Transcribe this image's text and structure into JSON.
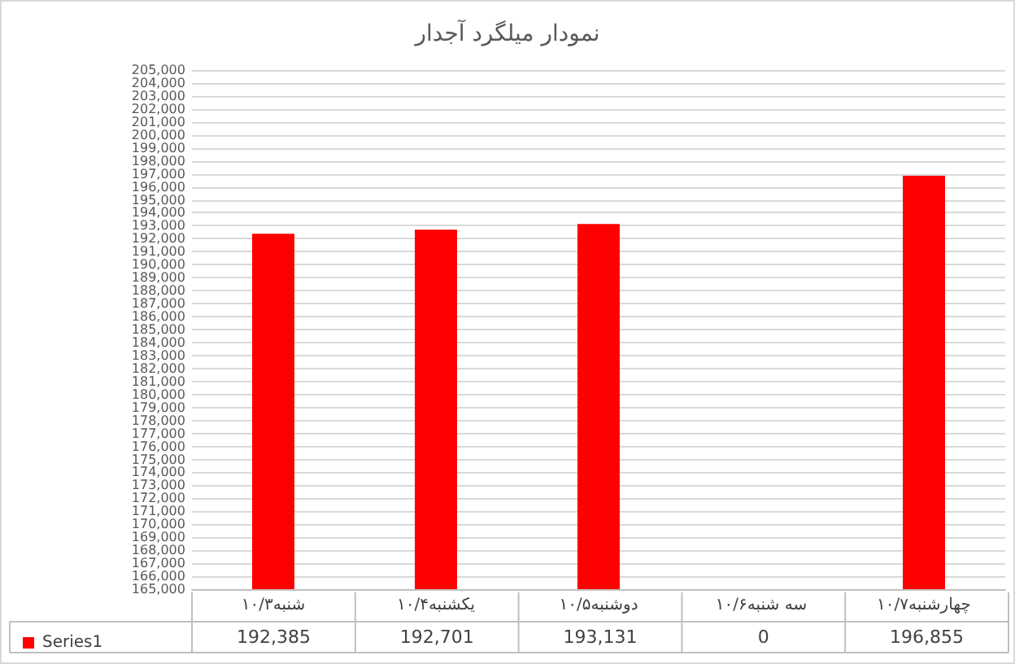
{
  "chart_data": {
    "type": "bar",
    "title": "نمودار میلگرد آجدار",
    "categories": [
      "شنبه۱۰/۳",
      "یکشنبه۱۰/۴",
      "دوشنبه۱۰/۵",
      "سه شنبه۱۰/۶",
      "چهارشنبه۱۰/۷"
    ],
    "series": [
      {
        "name": "Series1",
        "color": "#ff0000",
        "values": [
          192385,
          192701,
          193131,
          null,
          196855
        ],
        "value_labels": [
          "192,385",
          "192,701",
          "193,131",
          "0",
          "196,855"
        ]
      }
    ],
    "ylim": [
      165000,
      205000
    ],
    "yticks": [
      {
        "value": 165000,
        "label": "165,000"
      },
      {
        "value": 166000,
        "label": "166,000"
      },
      {
        "value": 167000,
        "label": "167,000"
      },
      {
        "value": 168000,
        "label": "168,000"
      },
      {
        "value": 169000,
        "label": "169,000"
      },
      {
        "value": 170000,
        "label": "170,000"
      },
      {
        "value": 171000,
        "label": "171,000"
      },
      {
        "value": 172000,
        "label": "172,000"
      },
      {
        "value": 173000,
        "label": "173,000"
      },
      {
        "value": 174000,
        "label": "174,000"
      },
      {
        "value": 175000,
        "label": "175,000"
      },
      {
        "value": 176000,
        "label": "176,000"
      },
      {
        "value": 177000,
        "label": "177,000"
      },
      {
        "value": 178000,
        "label": "178,000"
      },
      {
        "value": 179000,
        "label": "179,000"
      },
      {
        "value": 180000,
        "label": "180,000"
      },
      {
        "value": 181000,
        "label": "181,000"
      },
      {
        "value": 182000,
        "label": "182,000"
      },
      {
        "value": 183000,
        "label": "183,000"
      },
      {
        "value": 184000,
        "label": "184,000"
      },
      {
        "value": 185000,
        "label": "185,000"
      },
      {
        "value": 186000,
        "label": "186,000"
      },
      {
        "value": 187000,
        "label": "187,000"
      },
      {
        "value": 188000,
        "label": "188,000"
      },
      {
        "value": 189000,
        "label": "189,000"
      },
      {
        "value": 190000,
        "label": "190,000"
      },
      {
        "value": 191000,
        "label": "191,000"
      },
      {
        "value": 192000,
        "label": "192,000"
      },
      {
        "value": 193000,
        "label": "193,000"
      },
      {
        "value": 194000,
        "label": "194,000"
      },
      {
        "value": 195000,
        "label": "195,000"
      },
      {
        "value": 196000,
        "label": "196,000"
      },
      {
        "value": 197000,
        "label": "197,000"
      },
      {
        "value": 198000,
        "label": "198,000"
      },
      {
        "value": 199000,
        "label": "199,000"
      },
      {
        "value": 200000,
        "label": "200,000"
      },
      {
        "value": 201000,
        "label": "201,000"
      },
      {
        "value": 202000,
        "label": "202,000"
      },
      {
        "value": 203000,
        "label": "203,000"
      },
      {
        "value": 204000,
        "label": "204,000"
      },
      {
        "value": 205000,
        "label": "205,000"
      }
    ],
    "grid": "y",
    "legend": "bottom"
  }
}
